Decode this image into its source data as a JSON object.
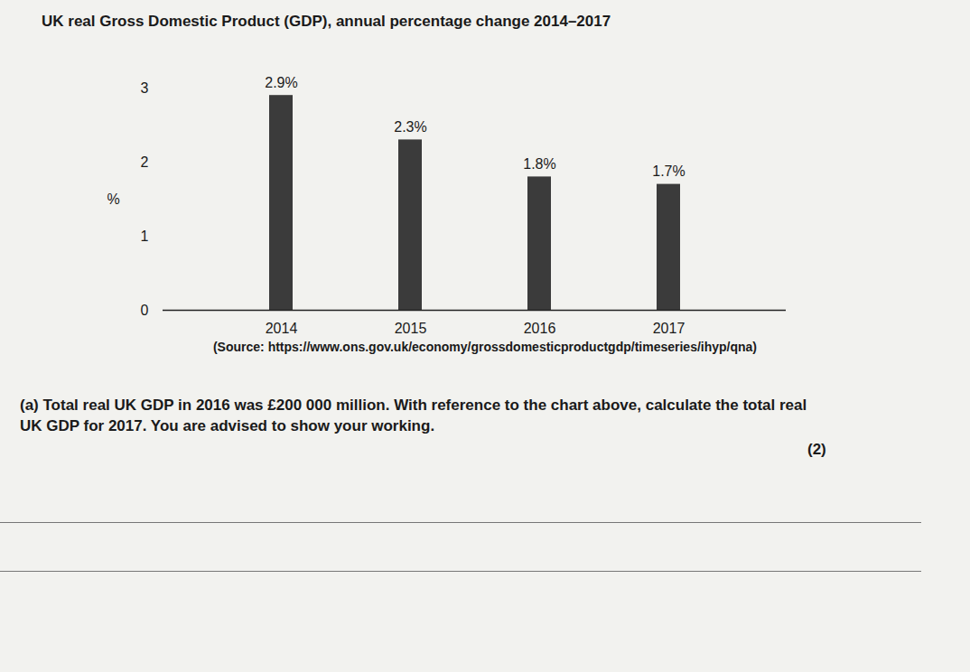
{
  "chart_data": {
    "type": "bar",
    "title": "UK real Gross Domestic Product (GDP), annual percentage change 2014–2017",
    "ylabel": "%",
    "categories": [
      "2014",
      "2015",
      "2016",
      "2017"
    ],
    "values": [
      2.9,
      2.3,
      1.8,
      1.7
    ],
    "value_labels": [
      "2.9%",
      "2.3%",
      "1.8%",
      "1.7%"
    ],
    "data_labels": true,
    "color": "#3b3b3b",
    "ylim": [
      0,
      3
    ],
    "yticks": [
      0,
      1,
      2,
      3
    ],
    "grid": false,
    "source": "(Source: https://www.ons.gov.uk/economy/grossdomesticproductgdp/timeseries/ihyp/qna)"
  },
  "question": {
    "label": "(a)",
    "text": "Total real UK GDP in 2016 was £200 000 million. With reference to the chart above, calculate the total real UK GDP for 2017. You are advised to show your working.",
    "marks": "(2)"
  }
}
